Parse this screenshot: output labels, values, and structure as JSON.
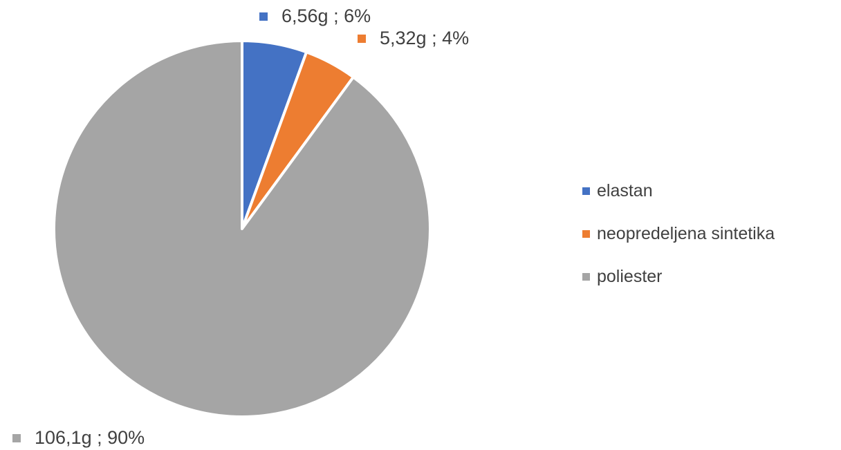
{
  "chart_data": {
    "type": "pie",
    "start_angle_deg": 0,
    "direction": "clockwise",
    "legend_position": "right",
    "slices": [
      {
        "name": "elastan",
        "value": 6.56,
        "percent": 6,
        "label": "6,56g ; 6%",
        "color": "#4472C4"
      },
      {
        "name": "neopredeljena sintetika",
        "value": 5.32,
        "percent": 4,
        "label": "5,32g ; 4%",
        "color": "#ED7D31"
      },
      {
        "name": "poliester",
        "value": 106.1,
        "percent": 90,
        "label": "106,1g ; 90%",
        "color": "#A5A5A5"
      }
    ]
  }
}
